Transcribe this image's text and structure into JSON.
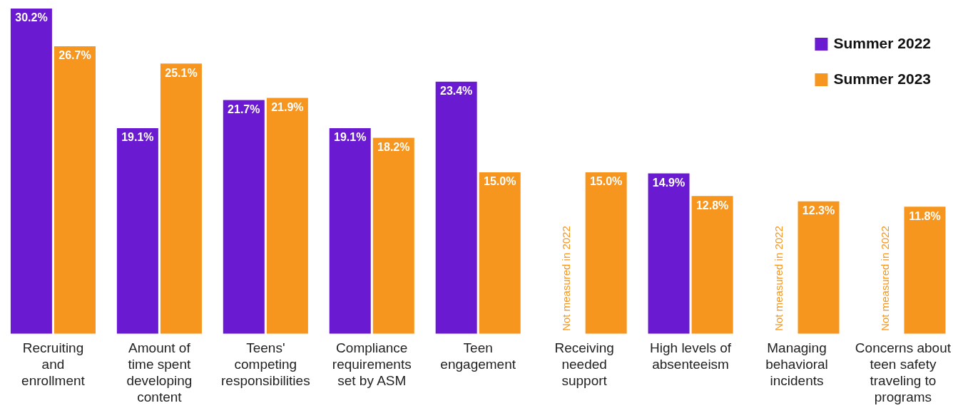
{
  "chart_data": {
    "type": "bar",
    "categories": [
      "Recruiting\nand\nenrollment",
      "Amount of\ntime spent\ndeveloping\ncontent",
      "Teens'\ncompeting\nresponsibilities",
      "Compliance\nrequirements\nset by ASM",
      "Teen\nengagement",
      "Receiving\nneeded\nsupport",
      "High levels of\nabsenteeism",
      "Managing\nbehavioral\nincidents",
      "Concerns about\nteen safety\ntraveling to\nprograms"
    ],
    "series": [
      {
        "name": "Summer 2022",
        "color": "#6a1bd1",
        "values": [
          30.2,
          19.1,
          21.7,
          19.1,
          23.4,
          null,
          14.9,
          null,
          null
        ],
        "value_labels": [
          "30.2%",
          "19.1%",
          "21.7%",
          "19.1%",
          "23.4%",
          null,
          "14.9%",
          null,
          null
        ]
      },
      {
        "name": "Summer 2023",
        "color": "#f7961e",
        "values": [
          26.7,
          25.1,
          21.9,
          18.2,
          15.0,
          15.0,
          12.8,
          12.3,
          11.8
        ],
        "value_labels": [
          "26.7%",
          "25.1%",
          "21.9%",
          "18.2%",
          "15.0%",
          "15.0%",
          "12.8%",
          "12.3%",
          "11.8%"
        ]
      }
    ],
    "annotations": [
      {
        "text": "Not measured in 2022",
        "x": "Receiving\nneeded\nsupport",
        "y": 0
      },
      {
        "text": "Not measured in 2022",
        "x": "Managing\nbehavioral\nincidents",
        "y": 0
      },
      {
        "text": "Not measured in 2022",
        "x": "Concerns about\nteen safety\ntraveling to\nprograms",
        "y": 0
      }
    ],
    "legend": "top right",
    "grid": false,
    "tick_labels": "x"
  }
}
